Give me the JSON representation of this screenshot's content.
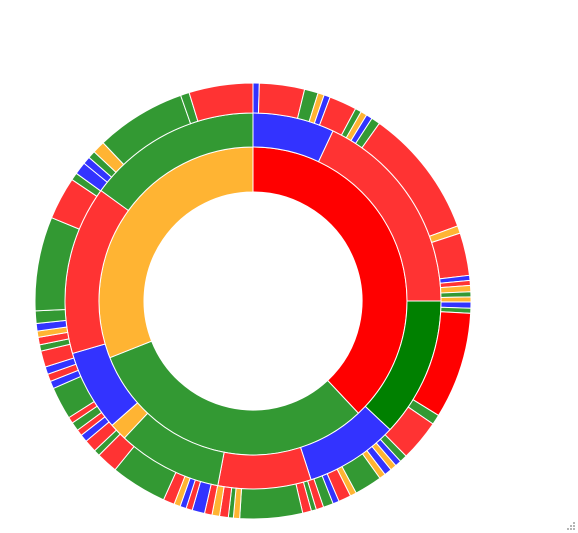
{
  "chart_data": {
    "type": "sunburst",
    "title": "",
    "colors": {
      "red": "#ff0000",
      "green": "#008000",
      "orange": "#ffb433",
      "light_green": "#339933",
      "light_red": "#ff3333",
      "blue": "#3333ff"
    },
    "rings": [
      {
        "level": 1,
        "segments": [
          {
            "color": "red",
            "value": 38
          },
          {
            "color": "light_green",
            "value": 31
          },
          {
            "color": "orange",
            "value": 31
          }
        ]
      },
      {
        "level": 2,
        "segments": [
          {
            "color": "blue",
            "value": 7
          },
          {
            "color": "light_red",
            "value": 18
          },
          {
            "color": "green",
            "value": 12
          },
          {
            "color": "blue",
            "value": 8
          },
          {
            "color": "light_red",
            "value": 8
          },
          {
            "color": "light_green",
            "value": 9
          },
          {
            "color": "orange",
            "value": 1.5
          },
          {
            "color": "blue",
            "value": 7
          },
          {
            "color": "light_red",
            "value": 14.5
          },
          {
            "color": "light_green",
            "value": 15
          }
        ]
      },
      {
        "level": 3,
        "segments": [
          {
            "color": "blue",
            "value": 0.5
          },
          {
            "color": "light_red",
            "value": 3.6
          },
          {
            "color": "light_green",
            "value": 1.1
          },
          {
            "color": "orange",
            "value": 0.5
          },
          {
            "color": "blue",
            "value": 0.5
          },
          {
            "color": "light_red",
            "value": 2.2
          },
          {
            "color": "light_green",
            "value": 0.5
          },
          {
            "color": "orange",
            "value": 0.5
          },
          {
            "color": "blue",
            "value": 0.5
          },
          {
            "color": "light_green",
            "value": 0.7
          },
          {
            "color": "light_red",
            "value": 10.3
          },
          {
            "color": "orange",
            "value": 0.6
          },
          {
            "color": "light_red",
            "value": 3.4
          },
          {
            "color": "blue",
            "value": 0.4
          },
          {
            "color": "light_red",
            "value": 0.4
          },
          {
            "color": "orange",
            "value": 0.5
          },
          {
            "color": "light_green",
            "value": 0.4
          },
          {
            "color": "orange",
            "value": 0.4
          },
          {
            "color": "blue",
            "value": 0.5
          },
          {
            "color": "light_green",
            "value": 0.4
          },
          {
            "color": "red",
            "value": 8.5
          },
          {
            "color": "light_green",
            "value": 0.8
          },
          {
            "color": "light_red",
            "value": 3.3
          },
          {
            "color": "light_green",
            "value": 0.6
          },
          {
            "color": "blue",
            "value": 0.5
          },
          {
            "color": "orange",
            "value": 0.5
          },
          {
            "color": "blue",
            "value": 0.6
          },
          {
            "color": "orange",
            "value": 0.5
          },
          {
            "color": "light_green",
            "value": 2.2
          },
          {
            "color": "orange",
            "value": 0.5
          },
          {
            "color": "light_red",
            "value": 1.0
          },
          {
            "color": "blue",
            "value": 0.5
          },
          {
            "color": "light_green",
            "value": 0.8
          },
          {
            "color": "light_red",
            "value": 0.6
          },
          {
            "color": "light_green",
            "value": 0.4
          },
          {
            "color": "light_red",
            "value": 0.7
          },
          {
            "color": "light_green",
            "value": 5.0
          },
          {
            "color": "orange",
            "value": 0.5
          },
          {
            "color": "light_green",
            "value": 0.4
          },
          {
            "color": "light_red",
            "value": 0.7
          },
          {
            "color": "orange",
            "value": 0.6
          },
          {
            "color": "light_red",
            "value": 0.6
          },
          {
            "color": "blue",
            "value": 1.0
          },
          {
            "color": "light_red",
            "value": 0.5
          },
          {
            "color": "blue",
            "value": 0.5
          },
          {
            "color": "orange",
            "value": 0.5
          },
          {
            "color": "light_red",
            "value": 0.9
          },
          {
            "color": "light_green",
            "value": 4.5
          },
          {
            "color": "light_red",
            "value": 1.7
          },
          {
            "color": "light_green",
            "value": 0.5
          },
          {
            "color": "light_red",
            "value": 1.0
          },
          {
            "color": "blue",
            "value": 0.6
          },
          {
            "color": "light_red",
            "value": 0.5
          },
          {
            "color": "light_green",
            "value": 0.7
          },
          {
            "color": "light_red",
            "value": 0.5
          },
          {
            "color": "light_green",
            "value": 2.6
          },
          {
            "color": "blue",
            "value": 0.6
          },
          {
            "color": "light_red",
            "value": 0.6
          },
          {
            "color": "blue",
            "value": 0.6
          },
          {
            "color": "light_red",
            "value": 1.3
          },
          {
            "color": "light_green",
            "value": 0.5
          },
          {
            "color": "light_red",
            "value": 0.6
          },
          {
            "color": "orange",
            "value": 0.5
          },
          {
            "color": "blue",
            "value": 0.6
          },
          {
            "color": "light_green",
            "value": 1.0
          },
          {
            "color": "light_green",
            "value": 7.5
          },
          {
            "color": "light_red",
            "value": 3.4
          },
          {
            "color": "light_green",
            "value": 0.6
          },
          {
            "color": "blue",
            "value": 1.0
          },
          {
            "color": "blue",
            "value": 0.6
          },
          {
            "color": "light_green",
            "value": 0.6
          },
          {
            "color": "orange",
            "value": 1.0
          },
          {
            "color": "light_green",
            "value": 7.2
          },
          {
            "color": "light_green",
            "value": 0.7
          },
          {
            "color": "light_red",
            "value": 5.1
          }
        ]
      }
    ]
  }
}
